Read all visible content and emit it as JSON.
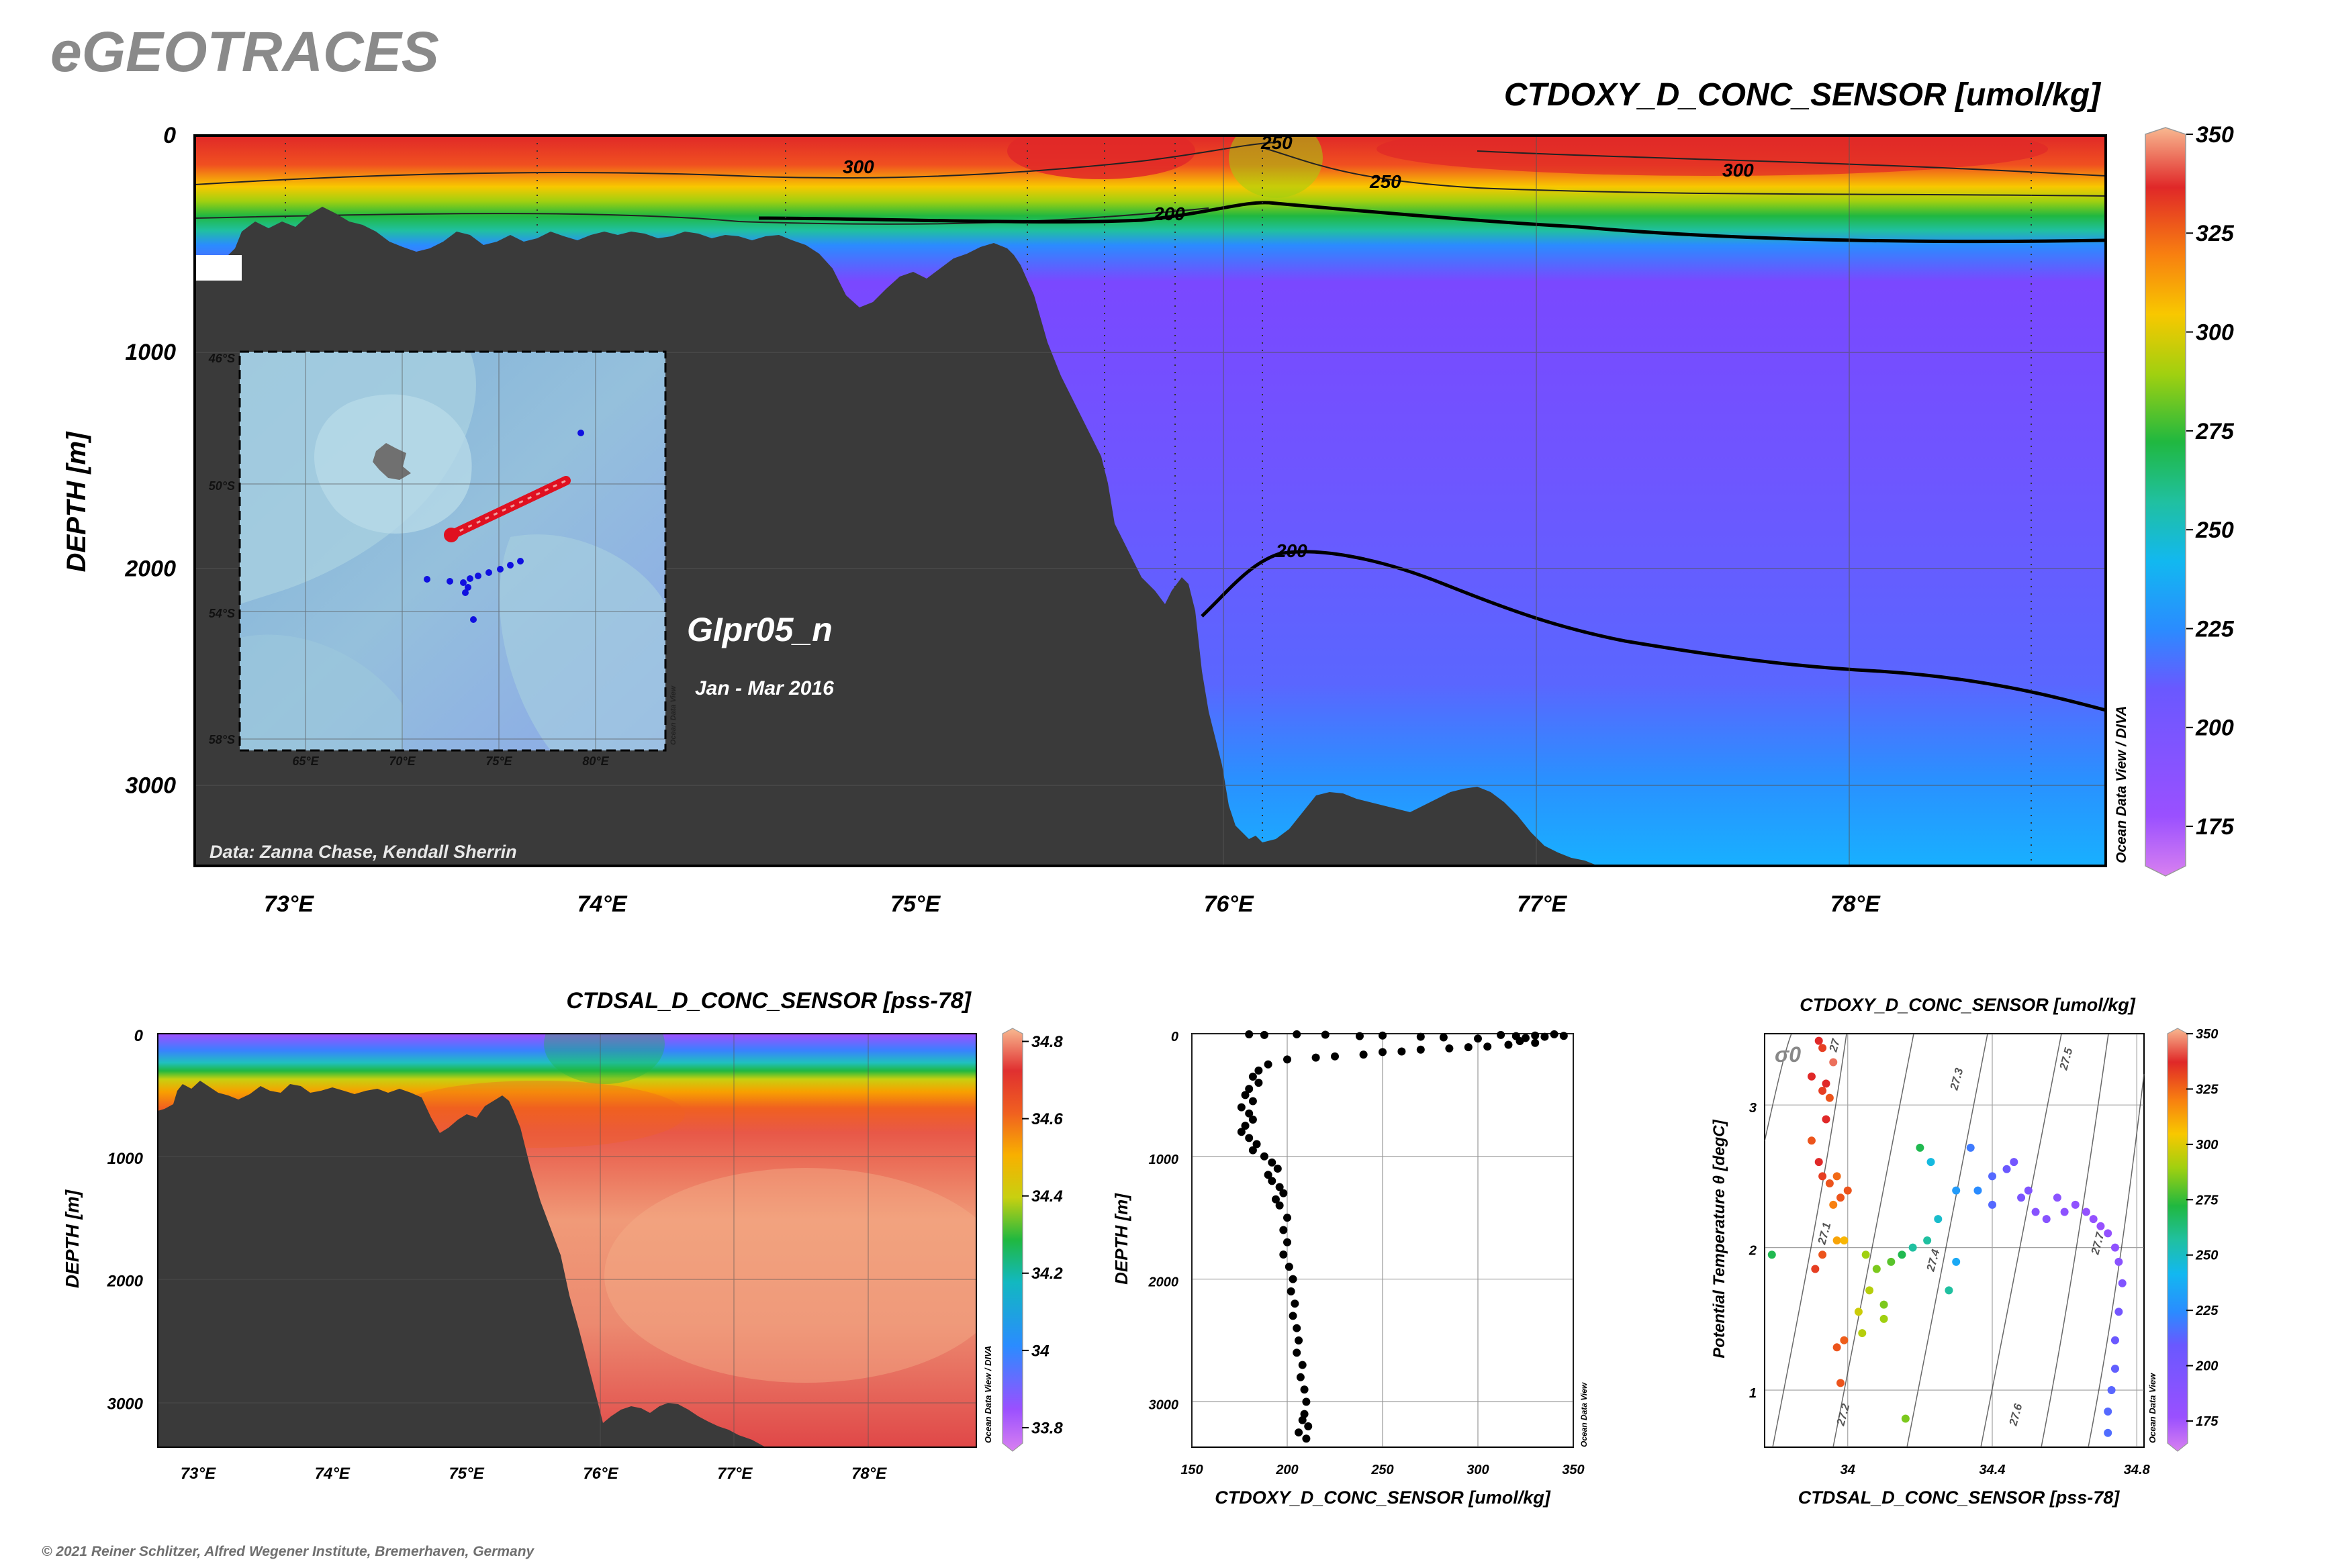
{
  "header": {
    "logo": "eGEOTRACES"
  },
  "footer": {
    "copyright": "© 2021 Reiner Schlitzer, Alfred Wegener Institute, Bremerhaven, Germany"
  },
  "main": {
    "credit": "Data: Zanna Chase, Kendall Sherrin",
    "cruise": "GIpr05_n",
    "dates": "Jan - Mar 2016",
    "watermark": "Ocean Data View / DIVA",
    "contour_labels": [
      "300",
      "250",
      "250",
      "300",
      "200",
      "200"
    ]
  },
  "inset": {
    "lat_labels": [
      "46°S",
      "50°S",
      "54°S",
      "58°S"
    ],
    "lon_labels": [
      "65°E",
      "70°E",
      "75°E",
      "80°E"
    ],
    "watermark": "Ocean Data View"
  },
  "salinity": {
    "watermark": "Ocean Data View / DIVA"
  },
  "profile": {
    "watermark": "Ocean Data View"
  },
  "ts": {
    "sigma_label": "σ0",
    "isopycnal_labels": [
      "27",
      "27.1",
      "27.2",
      "27.3",
      "27.4",
      "27.5",
      "27.6",
      "27.7"
    ],
    "watermark": "Ocean Data View"
  },
  "colors": {
    "oxygen_scale": [
      "#d880f0",
      "#9a50ff",
      "#2a8cff",
      "#12b8f0",
      "#20b840",
      "#f8c800",
      "#f88010",
      "#e02828",
      "#f8b890"
    ],
    "bathymetry": "#3a3a3a"
  },
  "chart_data": [
    {
      "type": "heatmap",
      "title": "CTDOXY_D_CONC_SENSOR [umol/kg]",
      "ylabel": "DEPTH [m]",
      "xticks": [
        "73°E",
        "74°E",
        "75°E",
        "76°E",
        "77°E",
        "78°E"
      ],
      "xtick_values": [
        73,
        74,
        75,
        76,
        77,
        78
      ],
      "xlim": [
        72.7,
        78.8
      ],
      "yticks": [
        "0",
        "1000",
        "2000",
        "3000"
      ],
      "ytick_values": [
        0,
        1000,
        2000,
        3000
      ],
      "ylim": [
        0,
        3370
      ],
      "colorbar_ticks": [
        "175",
        "200",
        "225",
        "250",
        "275",
        "300",
        "325",
        "350"
      ],
      "colorbar_values": [
        175,
        200,
        225,
        250,
        275,
        300,
        325,
        350
      ],
      "colorbar_range": [
        165,
        350
      ],
      "contour_levels": [
        200,
        250,
        300
      ]
    },
    {
      "type": "heatmap",
      "title": "CTDSAL_D_CONC_SENSOR [pss-78]",
      "ylabel": "DEPTH [m]",
      "xticks": [
        "73°E",
        "74°E",
        "75°E",
        "76°E",
        "77°E",
        "78°E"
      ],
      "xtick_values": [
        73,
        74,
        75,
        76,
        77,
        78
      ],
      "xlim": [
        72.7,
        78.8
      ],
      "yticks": [
        "0",
        "1000",
        "2000",
        "3000"
      ],
      "ytick_values": [
        0,
        1000,
        2000,
        3000
      ],
      "ylim": [
        0,
        3370
      ],
      "colorbar_ticks": [
        "33.8",
        "34",
        "34.2",
        "34.4",
        "34.6",
        "34.8"
      ],
      "colorbar_values": [
        33.8,
        34.0,
        34.2,
        34.4,
        34.6,
        34.8
      ],
      "colorbar_range": [
        33.76,
        34.82
      ]
    },
    {
      "type": "scatter",
      "xlabel": "CTDOXY_D_CONC_SENSOR [umol/kg]",
      "ylabel": "DEPTH [m]",
      "xlim": [
        150,
        350
      ],
      "ylim": [
        0,
        3370
      ],
      "xticks": [
        "150",
        "200",
        "250",
        "300",
        "350"
      ],
      "xtick_values": [
        150,
        200,
        250,
        300,
        350
      ],
      "yticks": [
        "0",
        "1000",
        "2000",
        "3000"
      ],
      "ytick_values": [
        0,
        1000,
        2000,
        3000
      ],
      "points": [
        [
          180,
          5
        ],
        [
          188,
          10
        ],
        [
          205,
          5
        ],
        [
          220,
          8
        ],
        [
          238,
          20
        ],
        [
          250,
          15
        ],
        [
          270,
          25
        ],
        [
          282,
          30
        ],
        [
          300,
          40
        ],
        [
          312,
          10
        ],
        [
          320,
          20
        ],
        [
          325,
          35
        ],
        [
          330,
          15
        ],
        [
          335,
          25
        ],
        [
          340,
          5
        ],
        [
          345,
          18
        ],
        [
          322,
          60
        ],
        [
          330,
          75
        ],
        [
          316,
          90
        ],
        [
          305,
          105
        ],
        [
          295,
          110
        ],
        [
          285,
          120
        ],
        [
          270,
          130
        ],
        [
          260,
          145
        ],
        [
          250,
          150
        ],
        [
          240,
          170
        ],
        [
          225,
          185
        ],
        [
          215,
          195
        ],
        [
          200,
          210
        ],
        [
          190,
          250
        ],
        [
          185,
          300
        ],
        [
          182,
          350
        ],
        [
          185,
          400
        ],
        [
          180,
          450
        ],
        [
          178,
          500
        ],
        [
          182,
          550
        ],
        [
          176,
          600
        ],
        [
          180,
          650
        ],
        [
          182,
          700
        ],
        [
          178,
          750
        ],
        [
          176,
          800
        ],
        [
          180,
          850
        ],
        [
          184,
          900
        ],
        [
          182,
          950
        ],
        [
          188,
          1000
        ],
        [
          192,
          1050
        ],
        [
          195,
          1100
        ],
        [
          190,
          1150
        ],
        [
          192,
          1200
        ],
        [
          196,
          1250
        ],
        [
          198,
          1300
        ],
        [
          194,
          1350
        ],
        [
          196,
          1400
        ],
        [
          200,
          1500
        ],
        [
          198,
          1600
        ],
        [
          200,
          1700
        ],
        [
          198,
          1800
        ],
        [
          201,
          1900
        ],
        [
          203,
          2000
        ],
        [
          202,
          2100
        ],
        [
          204,
          2200
        ],
        [
          203,
          2300
        ],
        [
          205,
          2400
        ],
        [
          206,
          2500
        ],
        [
          205,
          2600
        ],
        [
          208,
          2700
        ],
        [
          207,
          2800
        ],
        [
          209,
          2900
        ],
        [
          210,
          3000
        ],
        [
          209,
          3100
        ],
        [
          211,
          3200
        ],
        [
          210,
          3300
        ],
        [
          206,
          3250
        ],
        [
          208,
          3150
        ]
      ]
    },
    {
      "type": "scatter",
      "title": "CTDOXY_D_CONC_SENSOR [umol/kg]",
      "xlabel": "CTDSAL_D_CONC_SENSOR [pss-78]",
      "ylabel": "Potential Temperature θ [degC]",
      "xlim": [
        33.77,
        34.82
      ],
      "ylim": [
        0.6,
        3.5
      ],
      "xticks": [
        "34",
        "34.4",
        "34.8"
      ],
      "xtick_values": [
        34.0,
        34.4,
        34.8
      ],
      "yticks": [
        "1",
        "2",
        "3"
      ],
      "ytick_values": [
        1,
        2,
        3
      ],
      "colorbar_ticks": [
        "175",
        "200",
        "225",
        "250",
        "275",
        "300",
        "325",
        "350"
      ],
      "colorbar_values": [
        175,
        200,
        225,
        250,
        275,
        300,
        325,
        350
      ],
      "colorbar_range": [
        165,
        350
      ],
      "points": [
        [
          33.92,
          3.45,
          330
        ],
        [
          33.93,
          3.4,
          325
        ],
        [
          33.94,
          3.15,
          330
        ],
        [
          33.93,
          3.1,
          325
        ],
        [
          33.95,
          3.05,
          320
        ],
        [
          33.96,
          3.3,
          340
        ],
        [
          33.9,
          2.75,
          320
        ],
        [
          33.92,
          2.6,
          330
        ],
        [
          33.93,
          2.5,
          325
        ],
        [
          33.95,
          2.45,
          320
        ],
        [
          33.97,
          2.5,
          315
        ],
        [
          33.98,
          2.35,
          320
        ],
        [
          33.94,
          2.9,
          330
        ],
        [
          33.96,
          2.3,
          310
        ],
        [
          33.97,
          2.05,
          300
        ],
        [
          33.99,
          2.05,
          295
        ],
        [
          33.93,
          1.95,
          320
        ],
        [
          33.91,
          1.85,
          325
        ],
        [
          33.97,
          1.3,
          320
        ],
        [
          33.99,
          1.35,
          318
        ],
        [
          33.98,
          1.05,
          320
        ],
        [
          34.05,
          1.95,
          270
        ],
        [
          34.08,
          1.85,
          265
        ],
        [
          34.06,
          1.7,
          275
        ],
        [
          34.1,
          1.6,
          265
        ],
        [
          34.03,
          1.55,
          280
        ],
        [
          34.04,
          1.4,
          275
        ],
        [
          34.1,
          1.5,
          270
        ],
        [
          34.12,
          1.9,
          260
        ],
        [
          34.15,
          1.95,
          250
        ],
        [
          34.18,
          2.0,
          240
        ],
        [
          34.2,
          2.7,
          250
        ],
        [
          34.23,
          2.6,
          228
        ],
        [
          34.25,
          2.2,
          232
        ],
        [
          34.22,
          2.05,
          240
        ],
        [
          34.28,
          1.7,
          240
        ],
        [
          34.3,
          1.9,
          220
        ],
        [
          34.3,
          2.4,
          215
        ],
        [
          34.34,
          2.7,
          205
        ],
        [
          34.36,
          2.4,
          210
        ],
        [
          34.4,
          2.5,
          200
        ],
        [
          34.4,
          2.3,
          200
        ],
        [
          34.44,
          2.55,
          195
        ],
        [
          34.46,
          2.6,
          192
        ],
        [
          34.48,
          2.35,
          190
        ],
        [
          34.5,
          2.4,
          188
        ],
        [
          34.52,
          2.25,
          186
        ],
        [
          34.55,
          2.2,
          186
        ],
        [
          34.58,
          2.35,
          185
        ],
        [
          34.6,
          2.25,
          184
        ],
        [
          34.63,
          2.3,
          183
        ],
        [
          34.66,
          2.25,
          182
        ],
        [
          34.68,
          2.2,
          182
        ],
        [
          34.7,
          2.15,
          181
        ],
        [
          34.72,
          2.1,
          182
        ],
        [
          34.74,
          2.0,
          183
        ],
        [
          34.75,
          1.9,
          185
        ],
        [
          34.76,
          1.75,
          188
        ],
        [
          34.75,
          1.55,
          192
        ],
        [
          34.74,
          1.35,
          195
        ],
        [
          34.74,
          1.15,
          197
        ],
        [
          34.73,
          1.0,
          199
        ],
        [
          34.72,
          0.85,
          200
        ],
        [
          34.72,
          0.7,
          201
        ],
        [
          33.79,
          1.95,
          250
        ],
        [
          34.16,
          0.8,
          265
        ],
        [
          33.9,
          3.2,
          330
        ],
        [
          34.0,
          2.4,
          320
        ]
      ]
    }
  ]
}
